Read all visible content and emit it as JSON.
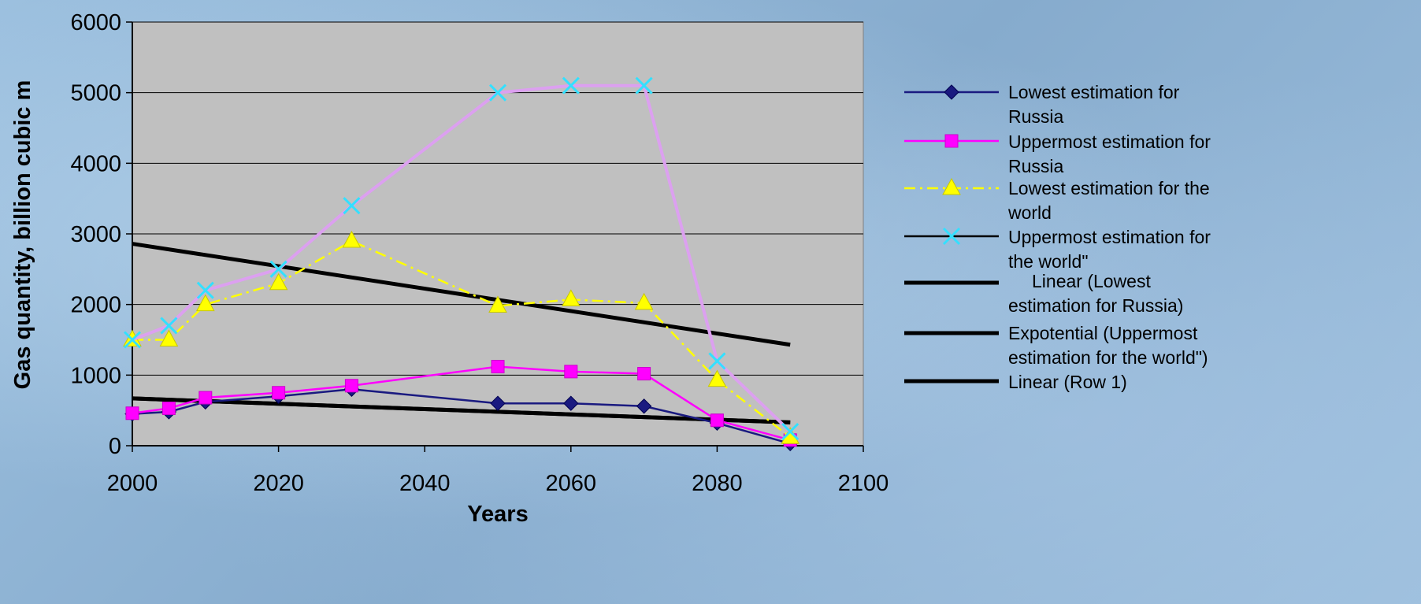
{
  "chart_data": {
    "type": "line",
    "title": "",
    "xlabel": "Years",
    "ylabel": "Gas quantity, billion cubic m",
    "xlim": [
      2000,
      2100
    ],
    "ylim": [
      0,
      6000
    ],
    "x_ticks": [
      "2000",
      "2020",
      "2040",
      "2060",
      "2080",
      "2100"
    ],
    "y_ticks": [
      "0",
      "1000",
      "2000",
      "3000",
      "4000",
      "5000",
      "6000"
    ],
    "grid": "horizontal",
    "legend_position": "right",
    "x": [
      2000,
      2005,
      2010,
      2020,
      2030,
      2050,
      2060,
      2070,
      2080,
      2090
    ],
    "series": [
      {
        "name": "Lowest estimation for Russia",
        "color": "#1a1a80",
        "marker": "diamond",
        "values": [
          450,
          480,
          620,
          700,
          800,
          600,
          600,
          560,
          320,
          30
        ]
      },
      {
        "name": "Uppermost estimation for Russia",
        "color": "#ff00ff",
        "marker": "square",
        "values": [
          460,
          530,
          680,
          750,
          850,
          1120,
          1050,
          1020,
          360,
          80
        ]
      },
      {
        "name": "Lowest estimation for the world",
        "color": "#ffff00",
        "marker": "triangle",
        "line_style": "dash-dot",
        "values": [
          1500,
          1500,
          2000,
          2300,
          2900,
          1980,
          2070,
          2020,
          930,
          120
        ]
      },
      {
        "name": "Uppermost estimation for the world\"",
        "color": "#dca0f0",
        "marker": "x",
        "marker_color": "#33e0ff",
        "values": [
          1500,
          1700,
          2200,
          2500,
          3400,
          5000,
          5100,
          5100,
          1200,
          200
        ]
      }
    ],
    "trendlines": [
      {
        "name": "Linear (Lowest estimation for Russia)",
        "color": "#000000",
        "x": [
          2000,
          2090
        ],
        "values": [
          670,
          330
        ]
      },
      {
        "name": "Expotential (Uppermost estimation for the world\")",
        "color": "#000000",
        "x": [
          2000,
          2090
        ],
        "values": [
          2860,
          1430
        ]
      },
      {
        "name": "Linear (Row 1)",
        "color": "#000000",
        "x": [
          2000,
          2090
        ],
        "values": [
          670,
          330
        ]
      }
    ],
    "legend": [
      {
        "lines": [
          "Lowest estimation for",
          "Russia"
        ]
      },
      {
        "lines": [
          "Uppermost estimation for",
          "Russia"
        ]
      },
      {
        "lines": [
          "Lowest estimation for the",
          "world"
        ]
      },
      {
        "lines": [
          "Uppermost estimation for",
          "the world\""
        ]
      },
      {
        "lines": [
          "Linear (Lowest",
          "estimation for Russia)"
        ]
      },
      {
        "lines": [
          "Expotential (Uppermost",
          "estimation for the world\")"
        ]
      },
      {
        "lines": [
          "Linear (Row 1)"
        ]
      }
    ]
  }
}
